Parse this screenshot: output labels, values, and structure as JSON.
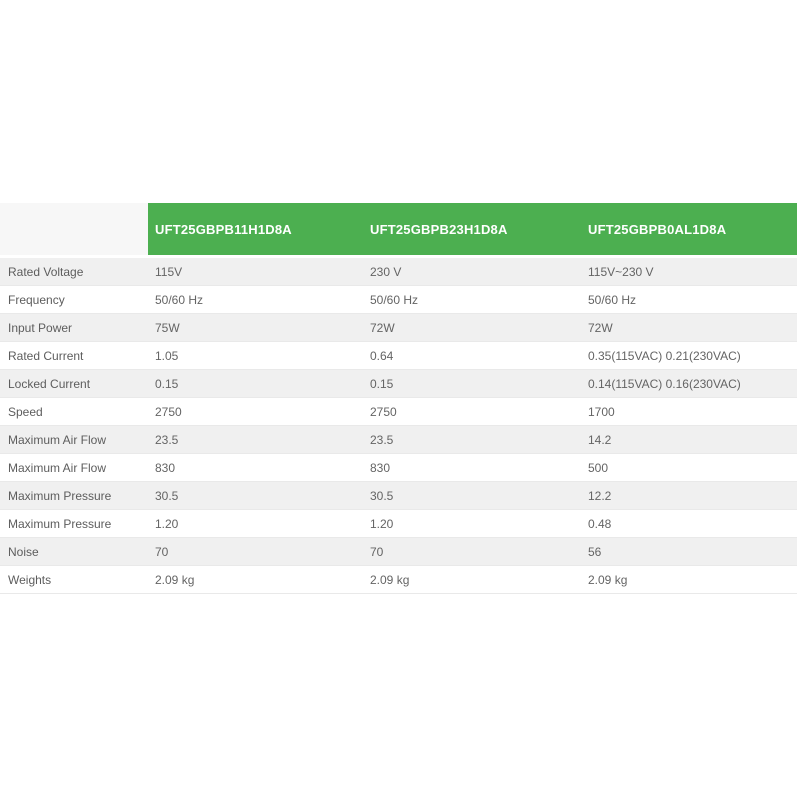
{
  "table": {
    "columns": [
      "UFT25GBPB11H1D8A",
      "UFT25GBPB23H1D8A",
      "UFT25GBPB0AL1D8A"
    ],
    "rows": [
      {
        "label": "Rated Voltage",
        "values": [
          "115V",
          "230 V",
          "115V~230 V"
        ]
      },
      {
        "label": "Frequency",
        "values": [
          "50/60 Hz",
          "50/60 Hz",
          "50/60 Hz"
        ]
      },
      {
        "label": "Input Power",
        "values": [
          "75W",
          "72W",
          "72W"
        ]
      },
      {
        "label": "Rated Current",
        "values": [
          "1.05",
          "0.64",
          "0.35(115VAC) 0.21(230VAC)"
        ]
      },
      {
        "label": "Locked Current",
        "values": [
          "0.15",
          "0.15",
          "0.14(115VAC) 0.16(230VAC)"
        ]
      },
      {
        "label": "Speed",
        "values": [
          "2750",
          "2750",
          "1700"
        ]
      },
      {
        "label": "Maximum Air Flow",
        "values": [
          "23.5",
          "23.5",
          "14.2"
        ]
      },
      {
        "label": "Maximum Air Flow",
        "values": [
          "830",
          "830",
          "500"
        ]
      },
      {
        "label": "Maximum Pressure",
        "values": [
          "30.5",
          "30.5",
          "12.2"
        ]
      },
      {
        "label": "Maximum Pressure",
        "values": [
          "1.20",
          "1.20",
          "0.48"
        ]
      },
      {
        "label": "Noise",
        "values": [
          "70",
          "70",
          "56"
        ]
      },
      {
        "label": "Weights",
        "values": [
          "2.09 kg",
          "2.09 kg",
          "2.09 kg"
        ]
      }
    ],
    "colors": {
      "header_bg": "#4caf50",
      "header_text": "#ffffff",
      "corner_bg": "#f7f7f7",
      "stripe_bg": "#f0f0f0",
      "row_bg": "#ffffff",
      "border": "#e9e9e9",
      "text": "#5d5d5d"
    }
  }
}
